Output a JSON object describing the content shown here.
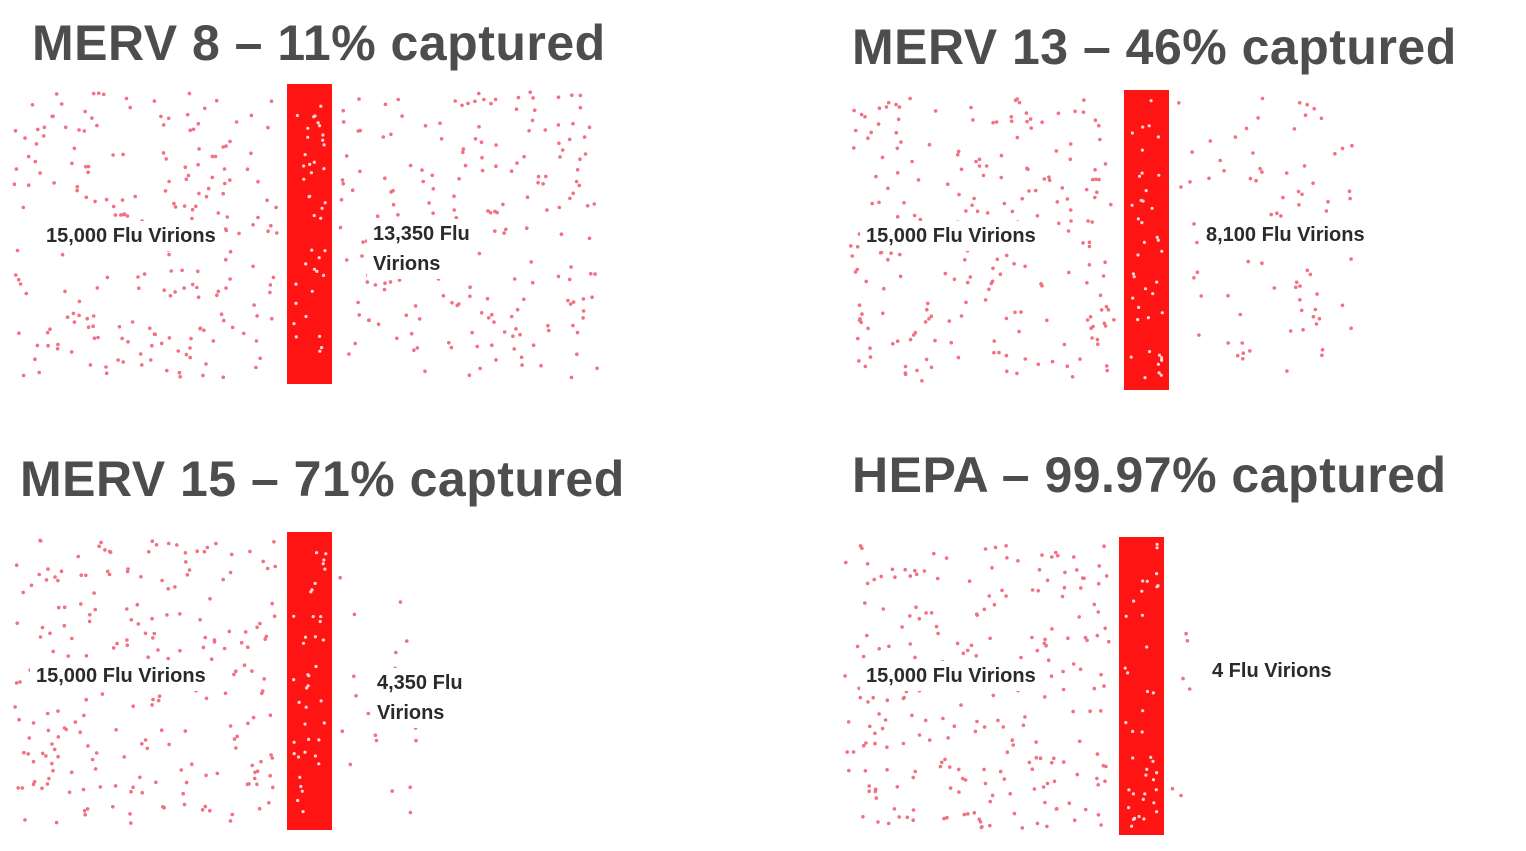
{
  "colors": {
    "filter": "#ff1414",
    "virion": "#f27080",
    "title": "#4d4d4d",
    "label": "#2a2a2a"
  },
  "panels": [
    {
      "title": "MERV 8 – 11% captured",
      "capture_percent": 11,
      "input_label": "15,000 Flu Virions",
      "output_label_lines": [
        "13,350 Flu",
        "Virions"
      ]
    },
    {
      "title": "MERV 13 – 46% captured",
      "capture_percent": 46,
      "input_label": "15,000 Flu Virions",
      "output_label_lines": [
        "8,100 Flu Virions"
      ]
    },
    {
      "title": "MERV 15 – 71% captured",
      "capture_percent": 71,
      "input_label": "15,000 Flu Virions",
      "output_label_lines": [
        "4,350 Flu",
        "Virions"
      ]
    },
    {
      "title": "HEPA – 99.97% captured",
      "capture_percent": 99.97,
      "input_label": "15,000 Flu Virions",
      "output_label_lines": [
        "4 Flu Virions"
      ]
    }
  ]
}
